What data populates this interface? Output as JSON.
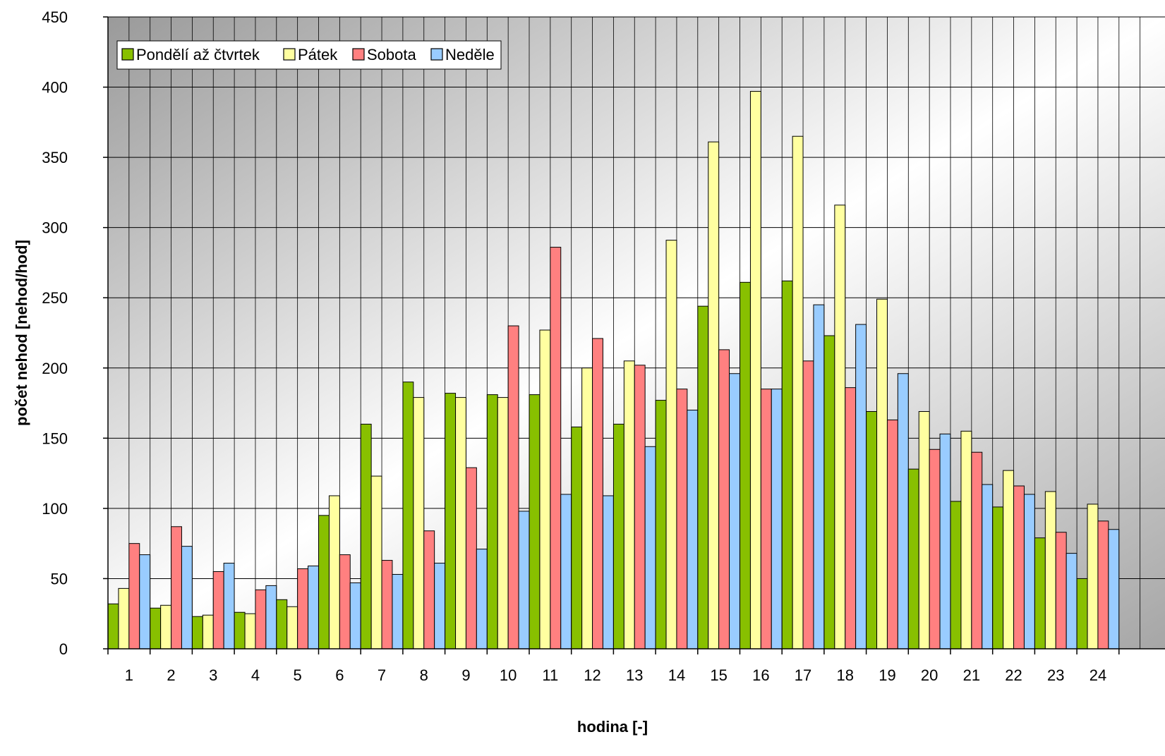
{
  "chart_data": {
    "type": "bar",
    "title": "",
    "xlabel": "hodina [-]",
    "ylabel": "počet nehod [nehod/hod]",
    "ylim": [
      0,
      450
    ],
    "yticks": [
      0,
      50,
      100,
      150,
      200,
      250,
      300,
      350,
      400,
      450
    ],
    "grid": true,
    "legend_position": "top-left",
    "categories": [
      "1",
      "2",
      "3",
      "4",
      "5",
      "6",
      "7",
      "8",
      "9",
      "10",
      "11",
      "12",
      "13",
      "14",
      "15",
      "16",
      "17",
      "18",
      "19",
      "20",
      "21",
      "22",
      "23",
      "24"
    ],
    "series": [
      {
        "name": "Pondělí až čtvrtek",
        "color": "#88c000",
        "values": [
          32,
          29,
          23,
          26,
          35,
          95,
          160,
          190,
          182,
          181,
          181,
          158,
          160,
          177,
          244,
          261,
          262,
          223,
          169,
          128,
          105,
          101,
          79,
          50
        ]
      },
      {
        "name": "Pátek",
        "color": "#ffffa0",
        "values": [
          43,
          31,
          24,
          25,
          30,
          109,
          123,
          179,
          179,
          179,
          227,
          200,
          205,
          291,
          361,
          397,
          365,
          316,
          249,
          169,
          155,
          127,
          112,
          103
        ]
      },
      {
        "name": "Sobota",
        "color": "#ff8080",
        "values": [
          75,
          87,
          55,
          42,
          57,
          67,
          63,
          84,
          129,
          230,
          286,
          221,
          202,
          185,
          213,
          185,
          205,
          186,
          163,
          142,
          140,
          116,
          83,
          91
        ]
      },
      {
        "name": "Neděle",
        "color": "#99ccff",
        "values": [
          67,
          73,
          61,
          45,
          59,
          47,
          53,
          61,
          71,
          98,
          110,
          109,
          144,
          170,
          196,
          185,
          245,
          231,
          196,
          153,
          117,
          110,
          68,
          85
        ]
      }
    ]
  }
}
